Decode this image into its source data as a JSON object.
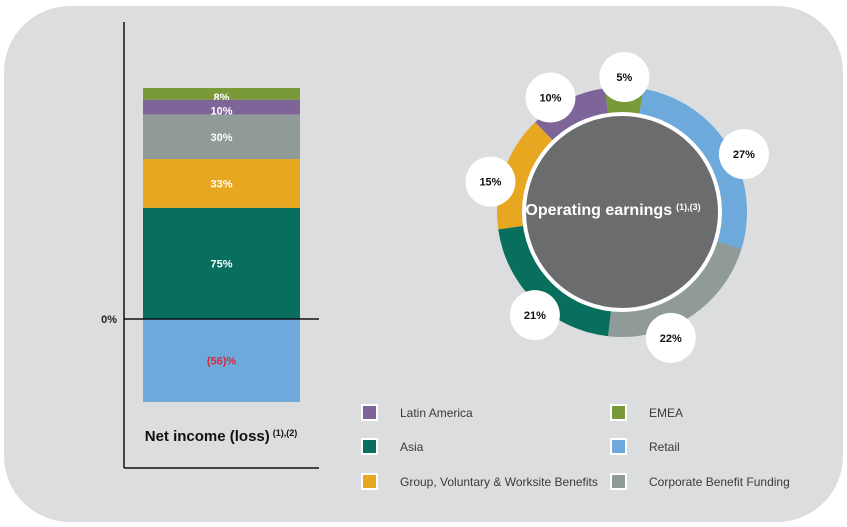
{
  "chart_data": [
    {
      "type": "bar",
      "subtype": "stacked",
      "title": "Net income (loss)",
      "title_superscript": "(1),(2)",
      "zero_label": "0%",
      "segments": [
        {
          "name": "EMEA",
          "value": 8,
          "label": "8%",
          "color": "#7a9a3a",
          "label_color": "#ffffff"
        },
        {
          "name": "Latin America",
          "value": 10,
          "label": "10%",
          "color": "#7d6599",
          "label_color": "#ffffff"
        },
        {
          "name": "Corporate Benefit Funding",
          "value": 30,
          "label": "30%",
          "color": "#8f9a99",
          "label_color": "#ffffff"
        },
        {
          "name": "Group, Voluntary & Worksite Benefits",
          "value": 33,
          "label": "33%",
          "color": "#e8a720",
          "label_color": "#ffffff"
        },
        {
          "name": "Asia",
          "value": 75,
          "label": "75%",
          "color": "#086e5e",
          "label_color": "#ffffff"
        },
        {
          "name": "Retail",
          "value": -56,
          "label": "(56)%",
          "color": "#6ea9dc",
          "label_color": "#d8283a"
        }
      ],
      "ylim": [
        -56,
        156
      ]
    },
    {
      "type": "pie",
      "subtype": "donut",
      "title": "Operating earnings",
      "title_superscript": "(1),(3)",
      "slices": [
        {
          "name": "EMEA",
          "value": 5,
          "label": "5%",
          "color": "#7a9a3a"
        },
        {
          "name": "Retail",
          "value": 27,
          "label": "27%",
          "color": "#6ea9dc"
        },
        {
          "name": "Corporate Benefit Funding",
          "value": 22,
          "label": "22%",
          "color": "#8f9a99"
        },
        {
          "name": "Asia",
          "value": 21,
          "label": "21%",
          "color": "#086e5e"
        },
        {
          "name": "Group, Voluntary & Worksite Benefits",
          "value": 15,
          "label": "15%",
          "color": "#e8a720"
        },
        {
          "name": "Latin America",
          "value": 10,
          "label": "10%",
          "color": "#7d6599"
        }
      ],
      "center_color": "#6b6c6e"
    }
  ],
  "legend": [
    {
      "label": "Latin America",
      "color": "#7d6599"
    },
    {
      "label": "EMEA",
      "color": "#7a9a3a"
    },
    {
      "label": "Asia",
      "color": "#086e5e"
    },
    {
      "label": "Retail",
      "color": "#6ea9dc"
    },
    {
      "label": "Group, Voluntary & Worksite Benefits",
      "color": "#e8a720"
    },
    {
      "label": "Corporate Benefit Funding",
      "color": "#8f9a99"
    }
  ]
}
